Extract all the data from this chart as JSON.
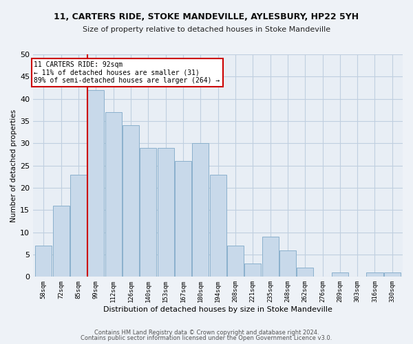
{
  "title_line1": "11, CARTERS RIDE, STOKE MANDEVILLE, AYLESBURY, HP22 5YH",
  "title_line2": "Size of property relative to detached houses in Stoke Mandeville",
  "xlabel": "Distribution of detached houses by size in Stoke Mandeville",
  "ylabel": "Number of detached properties",
  "categories": [
    "58sqm",
    "72sqm",
    "85sqm",
    "99sqm",
    "112sqm",
    "126sqm",
    "140sqm",
    "153sqm",
    "167sqm",
    "180sqm",
    "194sqm",
    "208sqm",
    "221sqm",
    "235sqm",
    "248sqm",
    "262sqm",
    "276sqm",
    "289sqm",
    "303sqm",
    "316sqm",
    "330sqm"
  ],
  "values": [
    7,
    16,
    23,
    42,
    37,
    34,
    29,
    29,
    26,
    30,
    23,
    7,
    3,
    9,
    6,
    2,
    0,
    1,
    0,
    1,
    1
  ],
  "bar_color": "#c8d9ea",
  "bar_edge_color": "#8ab0cc",
  "marker_label_line1": "11 CARTERS RIDE: 92sqm",
  "marker_label_line2": "← 11% of detached houses are smaller (31)",
  "marker_label_line3": "89% of semi-detached houses are larger (264) →",
  "annotation_box_color": "#ffffff",
  "annotation_box_edge": "#cc0000",
  "vline_color": "#cc0000",
  "grid_color": "#c0cfe0",
  "background_color": "#e8eef5",
  "fig_background": "#eef2f7",
  "ylim": [
    0,
    50
  ],
  "yticks": [
    0,
    5,
    10,
    15,
    20,
    25,
    30,
    35,
    40,
    45,
    50
  ],
  "footer_line1": "Contains HM Land Registry data © Crown copyright and database right 2024.",
  "footer_line2": "Contains public sector information licensed under the Open Government Licence v3.0.",
  "vline_bar_index": 3
}
